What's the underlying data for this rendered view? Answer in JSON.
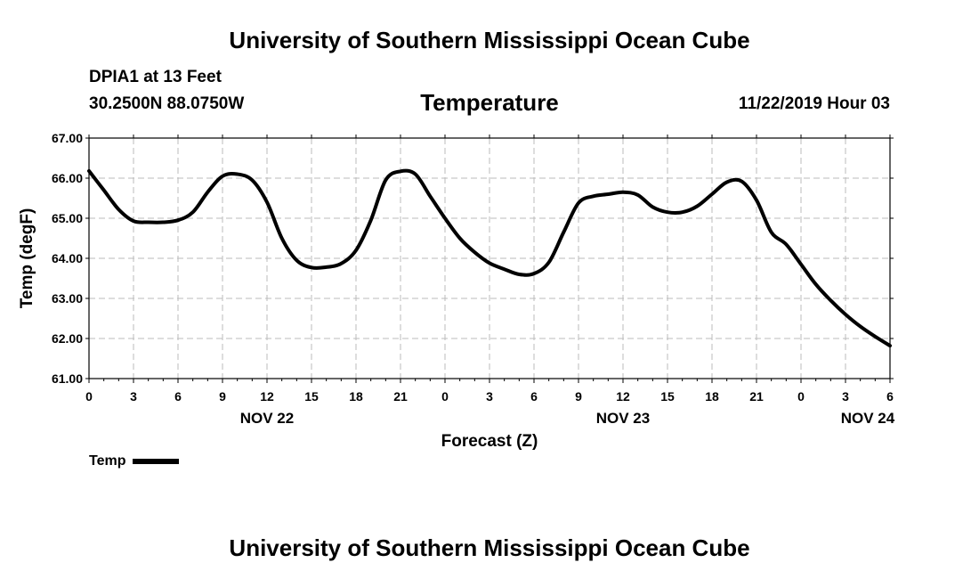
{
  "header": {
    "title": "University of Southern Mississippi Ocean Cube",
    "station": "DPIA1 at 13 Feet",
    "location": "30.2500N 88.0750W",
    "variable": "Temperature",
    "datetime": "11/22/2019 Hour 03"
  },
  "footer": {
    "title": "University of Southern Mississippi Ocean Cube"
  },
  "chart_data": {
    "type": "line",
    "title": "Temperature",
    "xlabel": "Forecast (Z)",
    "ylabel": "Temp (degF)",
    "ylim": [
      61.0,
      67.0
    ],
    "yticks": [
      "61.00",
      "62.00",
      "63.00",
      "64.00",
      "65.00",
      "66.00",
      "67.00"
    ],
    "xlim": [
      0,
      54
    ],
    "xticks": [
      {
        "x": 0,
        "label": "0"
      },
      {
        "x": 3,
        "label": "3"
      },
      {
        "x": 6,
        "label": "6"
      },
      {
        "x": 9,
        "label": "9"
      },
      {
        "x": 12,
        "label": "12"
      },
      {
        "x": 15,
        "label": "15"
      },
      {
        "x": 18,
        "label": "18"
      },
      {
        "x": 21,
        "label": "21"
      },
      {
        "x": 24,
        "label": "0"
      },
      {
        "x": 27,
        "label": "3"
      },
      {
        "x": 30,
        "label": "6"
      },
      {
        "x": 33,
        "label": "9"
      },
      {
        "x": 36,
        "label": "12"
      },
      {
        "x": 39,
        "label": "15"
      },
      {
        "x": 42,
        "label": "18"
      },
      {
        "x": 45,
        "label": "21"
      },
      {
        "x": 48,
        "label": "0"
      },
      {
        "x": 51,
        "label": "3"
      },
      {
        "x": 54,
        "label": "6"
      }
    ],
    "day_labels": [
      {
        "x": 12,
        "label": "NOV 22"
      },
      {
        "x": 36,
        "label": "NOV 23"
      },
      {
        "x": 52.5,
        "label": "NOV 24"
      }
    ],
    "grid": true,
    "legend_position": "bottom-left",
    "series": [
      {
        "name": "Temp",
        "color": "#000000",
        "points": [
          [
            0,
            66.18
          ],
          [
            1,
            65.7
          ],
          [
            2,
            65.22
          ],
          [
            3,
            64.93
          ],
          [
            4,
            64.9
          ],
          [
            5,
            64.9
          ],
          [
            6,
            64.95
          ],
          [
            7,
            65.15
          ],
          [
            8,
            65.65
          ],
          [
            9,
            66.05
          ],
          [
            10,
            66.1
          ],
          [
            11,
            65.95
          ],
          [
            12,
            65.4
          ],
          [
            13,
            64.5
          ],
          [
            14,
            63.95
          ],
          [
            15,
            63.77
          ],
          [
            16,
            63.78
          ],
          [
            17,
            63.87
          ],
          [
            18,
            64.2
          ],
          [
            19,
            64.95
          ],
          [
            20,
            65.95
          ],
          [
            21,
            66.17
          ],
          [
            22,
            66.1
          ],
          [
            23,
            65.55
          ],
          [
            24,
            65.0
          ],
          [
            25,
            64.5
          ],
          [
            26,
            64.15
          ],
          [
            27,
            63.88
          ],
          [
            28,
            63.73
          ],
          [
            29,
            63.6
          ],
          [
            30,
            63.62
          ],
          [
            31,
            63.9
          ],
          [
            32,
            64.65
          ],
          [
            33,
            65.38
          ],
          [
            34,
            65.55
          ],
          [
            35,
            65.6
          ],
          [
            36,
            65.65
          ],
          [
            37,
            65.58
          ],
          [
            38,
            65.28
          ],
          [
            39,
            65.15
          ],
          [
            40,
            65.15
          ],
          [
            41,
            65.3
          ],
          [
            42,
            65.6
          ],
          [
            43,
            65.9
          ],
          [
            44,
            65.92
          ],
          [
            45,
            65.45
          ],
          [
            46,
            64.65
          ],
          [
            47,
            64.35
          ],
          [
            48,
            63.85
          ],
          [
            49,
            63.35
          ],
          [
            50,
            62.95
          ],
          [
            51,
            62.6
          ],
          [
            52,
            62.3
          ],
          [
            53,
            62.05
          ],
          [
            54,
            61.82
          ]
        ]
      }
    ]
  }
}
